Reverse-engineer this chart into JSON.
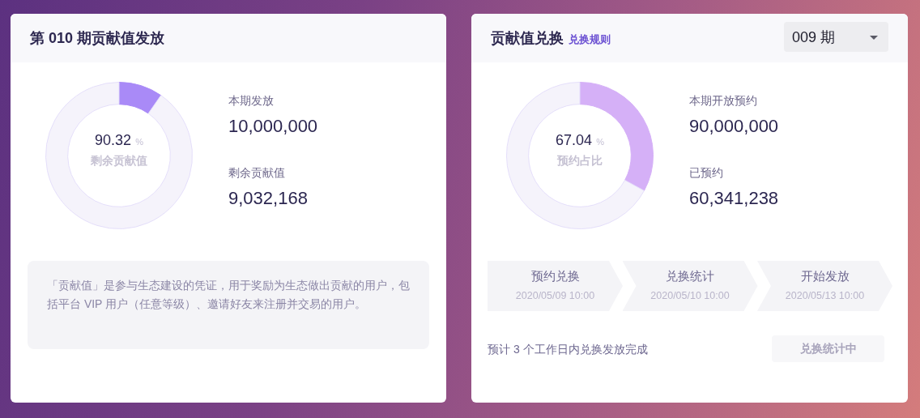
{
  "chart_data": [
    {
      "type": "donut",
      "title": "第 010 期贡献值发放",
      "categories": [
        null,
        "剩余贡献值"
      ],
      "values": [
        9.68,
        90.32
      ],
      "colors": [
        "#a98af7",
        "#f5f3fb"
      ],
      "value_labels": [
        null,
        "90.32 %"
      ],
      "annotations": [
        "本期发放",
        "10,000,000",
        "剩余贡献值",
        "9,032,168",
        "「贡献值」是参与生态建设的凭证，用于奖励为生态做出贡献的用户，包括平台 VIP 用户（任意等级）、邀请好友来注册并交易的用户。"
      ]
    },
    {
      "type": "donut",
      "title": "贡献值兑换",
      "subtitle": "兑换规则",
      "categories": [
        null,
        "预约占比"
      ],
      "values": [
        32.96,
        67.04
      ],
      "colors": [
        "#d5b0f7",
        "#f5f3fb"
      ],
      "value_labels": [
        null,
        "67.04 %"
      ],
      "annotations": [
        "本期开放预约",
        "90,000,000",
        "已预约",
        "60,341,238",
        "预约兑换",
        "2020/05/09 10:00",
        "兑换统计",
        "2020/05/10 10:00",
        "开始发放",
        "2020/05/13 10:00",
        "预计 3 个工作日内兑换发放完成",
        "兑换统计中",
        "009 期"
      ]
    }
  ]
}
